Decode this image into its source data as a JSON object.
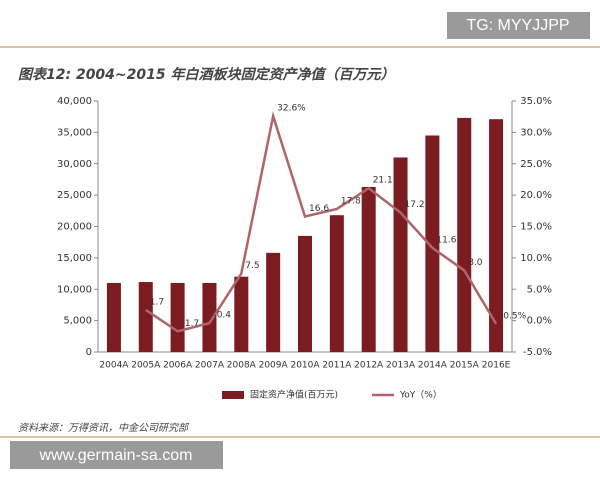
{
  "chart_data": {
    "type": "bar",
    "title": "图表12: 2004~2015 年白酒板块固定资产净值（百万元）",
    "source": "资料来源：万得资讯，中金公司研究部",
    "categories": [
      "2004A",
      "2005A",
      "2006A",
      "2007A",
      "2008A",
      "2009A",
      "2010A",
      "2011A",
      "2012A",
      "2013A",
      "2014A",
      "2015A",
      "2016E"
    ],
    "series": [
      {
        "name": "固定资产净值(百万元)",
        "type": "bar",
        "color": "#7b1c20",
        "values": [
          11000,
          11150,
          11000,
          11000,
          12000,
          15800,
          18500,
          21800,
          26300,
          31000,
          34500,
          37300,
          37100
        ]
      },
      {
        "name": "YoY（%）",
        "type": "line",
        "axis": "y2",
        "color": "#b0646a",
        "values": [
          null,
          1.7,
          -1.7,
          -0.4,
          7.5,
          32.6,
          16.6,
          17.8,
          21.1,
          17.2,
          11.6,
          8.0,
          -0.5
        ],
        "value_labels": [
          null,
          "1.7",
          "-1.7",
          "-0.4",
          "7.5",
          "32.6%",
          "16.6",
          "17.8",
          "21.1",
          "17.2",
          "11.6",
          "8.0",
          "-0.5%"
        ]
      }
    ],
    "ylim": [
      0,
      40000
    ],
    "yticks": [
      0,
      {
        "value": 5000,
        "label": "5,000"
      },
      {
        "value": 10000,
        "label": "10,000"
      },
      {
        "value": 15000,
        "label": "15,000"
      },
      {
        "value": 20000,
        "label": "20,000"
      },
      {
        "value": 25000,
        "label": "25,000"
      },
      {
        "value": 30000,
        "label": "30,000"
      },
      {
        "value": 35000,
        "label": "35,000"
      },
      {
        "value": 40000,
        "label": "40,000"
      }
    ],
    "y2lim": [
      -5,
      35
    ],
    "y2ticks": [
      {
        "value": -5,
        "label": "-5.0%"
      },
      {
        "value": 0,
        "label": "0.0%"
      },
      {
        "value": 5,
        "label": "5.0%"
      },
      {
        "value": 10,
        "label": "10.0%"
      },
      {
        "value": 15,
        "label": "15.0%"
      },
      {
        "value": 20,
        "label": "20.0%"
      },
      {
        "value": 25,
        "label": "25.0%"
      },
      {
        "value": 30,
        "label": "30.0%"
      },
      {
        "value": 35,
        "label": "35.0%"
      }
    ]
  },
  "watermarks": {
    "top": "TG: MYYJJPP",
    "bottom": "www.germain-sa.com"
  }
}
